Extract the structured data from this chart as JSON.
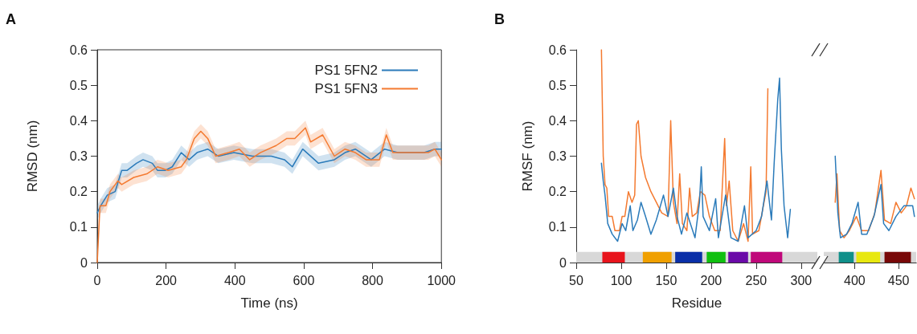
{
  "chart_data": [
    {
      "type": "line",
      "title": "A",
      "xlabel": "Time (ns)",
      "ylabel": "RMSD (nm)",
      "xlim": [
        0,
        1000
      ],
      "xticks": [
        0,
        200,
        400,
        600,
        800,
        1000
      ],
      "ylim": [
        0,
        0.6
      ],
      "yticks": [
        0,
        0.1,
        0.2,
        0.3,
        0.4,
        0.5,
        0.6
      ],
      "legend": "top right",
      "series": [
        {
          "name": "PS1 5FN2",
          "color": "#2b7bba",
          "x": [
            0,
            10,
            29,
            52,
            71,
            87,
            114,
            133,
            160,
            175,
            198,
            218,
            244,
            267,
            290,
            321,
            352,
            397,
            451,
            506,
            544,
            567,
            597,
            643,
            689,
            720,
            750,
            796,
            835,
            873,
            950,
            981,
            1000
          ],
          "values": [
            0.14,
            0.16,
            0.19,
            0.2,
            0.26,
            0.26,
            0.28,
            0.29,
            0.28,
            0.26,
            0.26,
            0.27,
            0.31,
            0.29,
            0.31,
            0.32,
            0.3,
            0.31,
            0.3,
            0.3,
            0.29,
            0.27,
            0.32,
            0.28,
            0.29,
            0.31,
            0.32,
            0.29,
            0.32,
            0.31,
            0.31,
            0.32,
            0.32
          ],
          "lower": [
            0.12,
            0.14,
            0.17,
            0.18,
            0.24,
            0.24,
            0.26,
            0.27,
            0.26,
            0.24,
            0.24,
            0.25,
            0.29,
            0.27,
            0.29,
            0.3,
            0.28,
            0.29,
            0.28,
            0.28,
            0.27,
            0.25,
            0.3,
            0.26,
            0.27,
            0.29,
            0.3,
            0.27,
            0.3,
            0.29,
            0.29,
            0.3,
            0.3
          ],
          "upper": [
            0.16,
            0.18,
            0.21,
            0.22,
            0.28,
            0.28,
            0.3,
            0.31,
            0.3,
            0.28,
            0.28,
            0.29,
            0.33,
            0.31,
            0.33,
            0.34,
            0.32,
            0.33,
            0.32,
            0.32,
            0.31,
            0.29,
            0.34,
            0.3,
            0.31,
            0.33,
            0.34,
            0.31,
            0.34,
            0.33,
            0.33,
            0.34,
            0.34
          ]
        },
        {
          "name": "PS1 5FN3",
          "color": "#f47a30",
          "x": [
            0,
            8,
            25,
            37,
            60,
            71,
            106,
            144,
            175,
            206,
            244,
            259,
            282,
            301,
            321,
            344,
            382,
            413,
            443,
            474,
            520,
            551,
            574,
            605,
            620,
            655,
            689,
            720,
            750,
            781,
            820,
            840,
            859,
            912,
            962,
            981,
            1000
          ],
          "values": [
            0,
            0.16,
            0.16,
            0.2,
            0.23,
            0.22,
            0.24,
            0.25,
            0.27,
            0.26,
            0.27,
            0.29,
            0.35,
            0.37,
            0.35,
            0.3,
            0.31,
            0.32,
            0.29,
            0.31,
            0.33,
            0.35,
            0.35,
            0.38,
            0.34,
            0.36,
            0.3,
            0.32,
            0.31,
            0.29,
            0.29,
            0.36,
            0.31,
            0.31,
            0.31,
            0.32,
            0.29
          ],
          "lower": [
            0,
            0.14,
            0.14,
            0.18,
            0.21,
            0.2,
            0.22,
            0.23,
            0.25,
            0.24,
            0.25,
            0.27,
            0.33,
            0.35,
            0.33,
            0.28,
            0.29,
            0.3,
            0.27,
            0.29,
            0.31,
            0.33,
            0.33,
            0.36,
            0.32,
            0.34,
            0.28,
            0.3,
            0.29,
            0.27,
            0.27,
            0.34,
            0.29,
            0.29,
            0.29,
            0.3,
            0.27
          ],
          "upper": [
            0.02,
            0.18,
            0.18,
            0.22,
            0.25,
            0.24,
            0.26,
            0.27,
            0.29,
            0.28,
            0.29,
            0.31,
            0.37,
            0.39,
            0.37,
            0.32,
            0.33,
            0.34,
            0.31,
            0.33,
            0.35,
            0.37,
            0.37,
            0.4,
            0.36,
            0.38,
            0.32,
            0.34,
            0.33,
            0.31,
            0.31,
            0.38,
            0.33,
            0.33,
            0.33,
            0.34,
            0.31
          ]
        }
      ]
    },
    {
      "type": "line",
      "title": "B",
      "xlabel": "Residue",
      "ylabel": "RMSF (nm)",
      "xlim": [
        50,
        318
      ],
      "xticks": [
        50,
        100,
        150,
        200,
        250,
        300
      ],
      "ylim": [
        0,
        0.6
      ],
      "yticks": [
        0,
        0.1,
        0.2,
        0.3,
        0.4,
        0.5,
        0.6
      ],
      "bands": [
        {
          "axis": "x",
          "from": 50,
          "to": 318,
          "color": "#d8d8d8"
        },
        {
          "axis": "x",
          "from": 79,
          "to": 104,
          "color": "#e8141c"
        },
        {
          "axis": "x",
          "from": 124,
          "to": 156,
          "color": "#f0a000"
        },
        {
          "axis": "x",
          "from": 160,
          "to": 190,
          "color": "#0a2fa8"
        },
        {
          "axis": "x",
          "from": 195,
          "to": 216,
          "color": "#10c010"
        },
        {
          "axis": "x",
          "from": 219,
          "to": 241,
          "color": "#6a0aa8"
        },
        {
          "axis": "x",
          "from": 244,
          "to": 279,
          "color": "#c0087a"
        }
      ],
      "series": [
        {
          "color": "#f47a30",
          "x": [
            78,
            80,
            82,
            84,
            86,
            90,
            93,
            98,
            101,
            104,
            108,
            112,
            115,
            117,
            119,
            122,
            127,
            133,
            139,
            145,
            152,
            155,
            158,
            162,
            165,
            168,
            173,
            176,
            179,
            184,
            188,
            193,
            198,
            204,
            210,
            215,
            217,
            220,
            224,
            230,
            236,
            241,
            244,
            246,
            253,
            258,
            261,
            263
          ],
          "values": [
            0.6,
            0.3,
            0.22,
            0.21,
            0.13,
            0.13,
            0.09,
            0.09,
            0.13,
            0.13,
            0.2,
            0.17,
            0.19,
            0.39,
            0.4,
            0.3,
            0.24,
            0.2,
            0.17,
            0.14,
            0.13,
            0.4,
            0.17,
            0.11,
            0.25,
            0.11,
            0.09,
            0.21,
            0.13,
            0.14,
            0.2,
            0.19,
            0.13,
            0.09,
            0.09,
            0.35,
            0.16,
            0.23,
            0.09,
            0.06,
            0.11,
            0.06,
            0.27,
            0.08,
            0.09,
            0.16,
            0.2,
            0.49
          ]
        },
        {
          "color": "#2b7bba",
          "x": [
            78,
            80,
            82,
            85,
            90,
            96,
            101,
            105,
            110,
            113,
            118,
            122,
            127,
            133,
            139,
            147,
            152,
            158,
            162,
            167,
            173,
            182,
            187,
            189,
            191,
            198,
            205,
            208,
            216,
            222,
            230,
            237,
            241,
            250,
            256,
            262,
            267,
            270,
            274,
            276,
            278,
            281,
            285,
            288
          ],
          "values": [
            0.28,
            0.23,
            0.19,
            0.11,
            0.08,
            0.06,
            0.11,
            0.09,
            0.16,
            0.09,
            0.12,
            0.17,
            0.13,
            0.08,
            0.12,
            0.19,
            0.13,
            0.21,
            0.13,
            0.08,
            0.14,
            0.07,
            0.17,
            0.27,
            0.13,
            0.09,
            0.18,
            0.07,
            0.19,
            0.07,
            0.06,
            0.16,
            0.07,
            0.09,
            0.13,
            0.23,
            0.12,
            0.28,
            0.46,
            0.52,
            0.32,
            0.16,
            0.07,
            0.15
          ]
        }
      ]
    },
    {
      "type": "line",
      "xlim": [
        365,
        470
      ],
      "xticks": [
        400,
        450
      ],
      "ylim": [
        0,
        0.6
      ],
      "yticks": [
        0,
        0.1,
        0.2,
        0.3,
        0.4,
        0.5,
        0.6
      ],
      "tick_labels": "x",
      "bands": [
        {
          "axis": "x",
          "from": 365,
          "to": 470,
          "color": "#d8d8d8"
        },
        {
          "axis": "x",
          "from": 382,
          "to": 399,
          "color": "#10908a"
        },
        {
          "axis": "x",
          "from": 402,
          "to": 429,
          "color": "#e8e810"
        },
        {
          "axis": "x",
          "from": 434,
          "to": 464,
          "color": "#780808"
        }
      ],
      "series": [
        {
          "color": "#f47a30",
          "x": [
            378,
            380,
            383,
            388,
            394,
            402,
            408,
            416,
            423,
            430,
            434,
            441,
            447,
            453,
            459,
            464,
            468
          ],
          "values": [
            0.17,
            0.25,
            0.09,
            0.07,
            0.09,
            0.13,
            0.09,
            0.09,
            0.14,
            0.26,
            0.12,
            0.11,
            0.17,
            0.14,
            0.16,
            0.21,
            0.18
          ]
        },
        {
          "color": "#2b7bba",
          "x": [
            378,
            381,
            384,
            391,
            397,
            404,
            408,
            414,
            422,
            430,
            433,
            439,
            447,
            456,
            466,
            468
          ],
          "values": [
            0.3,
            0.14,
            0.07,
            0.08,
            0.11,
            0.17,
            0.08,
            0.08,
            0.13,
            0.22,
            0.11,
            0.09,
            0.13,
            0.16,
            0.16,
            0.13
          ]
        }
      ]
    }
  ]
}
